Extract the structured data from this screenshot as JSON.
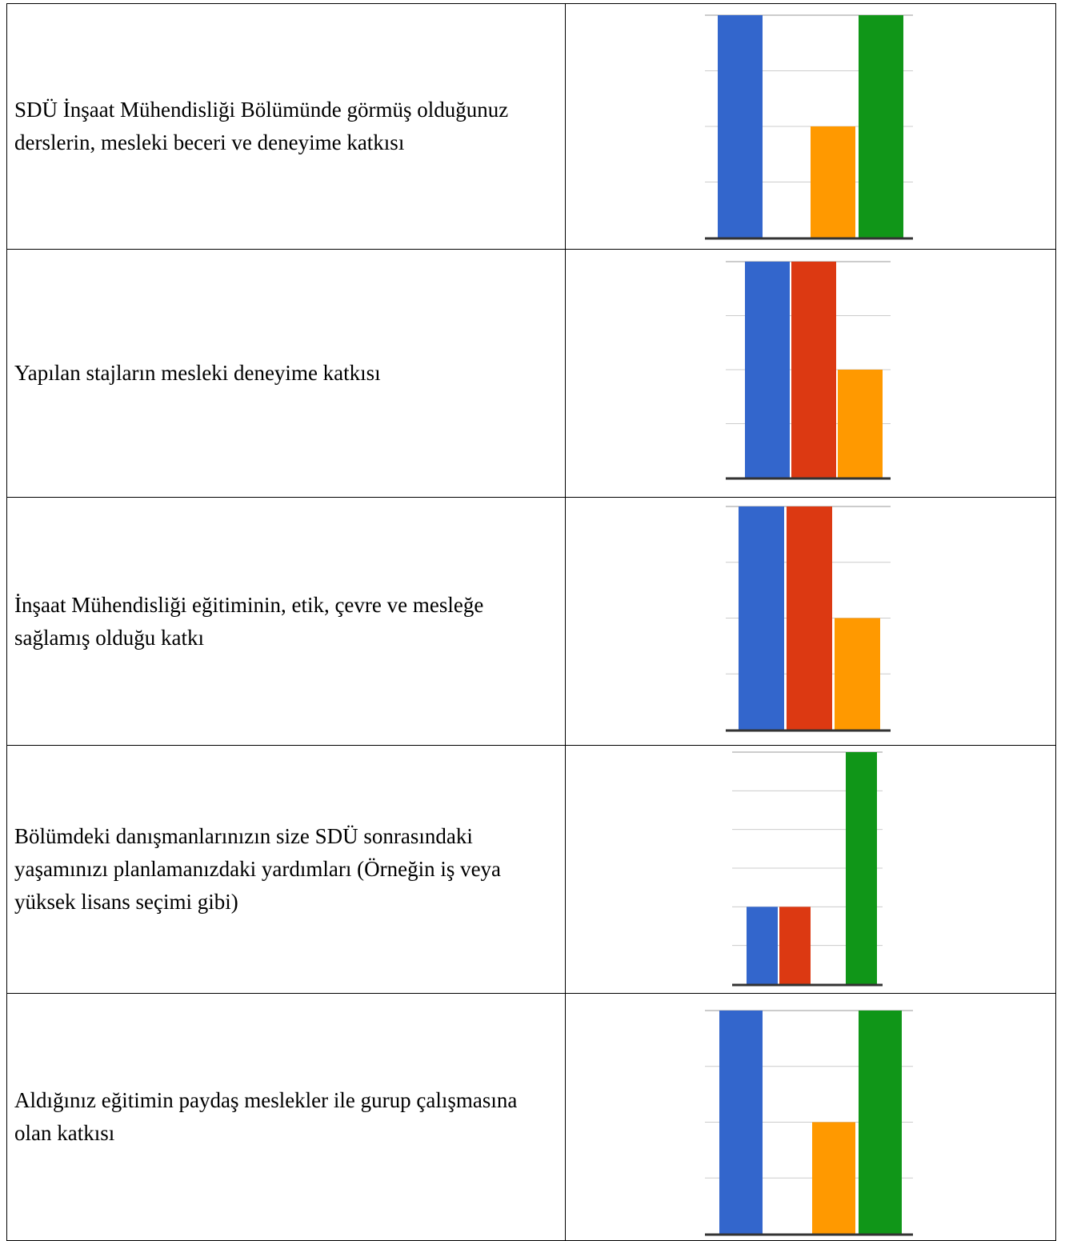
{
  "colors": {
    "blue": "#3366cc",
    "red": "#dc3912",
    "orange": "#ff9900",
    "green": "#109618",
    "grid": "#cccccc",
    "baseline": "#333333"
  },
  "rows": [
    {
      "label": "SDÜ İnşaat Mühendisliği Bölümünde görmüş olduğunuz derslerin, mesleki beceri ve deneyime katkısı"
    },
    {
      "label": "Yapılan stajların mesleki deneyime katkısı"
    },
    {
      "label": "İnşaat Mühendisliği eğitiminin, etik, çevre ve mesleğe sağlamış olduğu katkı"
    },
    {
      "label": "Bölümdeki danışmanlarınızın size SDÜ sonrasındaki yaşamınızı planlamanızdaki yardımları (Örneğin iş veya yüksek lisans seçimi gibi)"
    },
    {
      "label": "Aldığınız eğitimin paydaş meslekler ile gurup çalışmasına olan katkısı"
    }
  ],
  "chart_data": [
    {
      "type": "bar",
      "ylim": [
        0,
        1
      ],
      "grid": true,
      "series": [
        {
          "values": [
            1
          ],
          "color": "#3366cc"
        },
        {
          "values": [
            0
          ],
          "color": "#dc3912"
        },
        {
          "values": [
            0.5
          ],
          "color": "#ff9900"
        },
        {
          "values": [
            1
          ],
          "color": "#109618"
        }
      ]
    },
    {
      "type": "bar",
      "ylim": [
        0,
        1
      ],
      "grid": true,
      "series": [
        {
          "values": [
            1
          ],
          "color": "#3366cc"
        },
        {
          "values": [
            1
          ],
          "color": "#dc3912"
        },
        {
          "values": [
            0.5
          ],
          "color": "#ff9900"
        }
      ]
    },
    {
      "type": "bar",
      "ylim": [
        0,
        1
      ],
      "grid": true,
      "series": [
        {
          "values": [
            1
          ],
          "color": "#3366cc"
        },
        {
          "values": [
            1
          ],
          "color": "#dc3912"
        },
        {
          "values": [
            0.5
          ],
          "color": "#ff9900"
        }
      ]
    },
    {
      "type": "bar",
      "ylim": [
        0,
        3
      ],
      "grid": true,
      "series": [
        {
          "values": [
            1
          ],
          "color": "#3366cc"
        },
        {
          "values": [
            1
          ],
          "color": "#dc3912"
        },
        {
          "values": [
            0
          ],
          "color": "#ff9900"
        },
        {
          "values": [
            3
          ],
          "color": "#109618"
        }
      ]
    },
    {
      "type": "bar",
      "ylim": [
        0,
        1
      ],
      "grid": true,
      "series": [
        {
          "values": [
            1
          ],
          "color": "#3366cc"
        },
        {
          "values": [
            0
          ],
          "color": "#dc3912"
        },
        {
          "values": [
            0.5
          ],
          "color": "#ff9900"
        },
        {
          "values": [
            1
          ],
          "color": "#109618"
        }
      ]
    }
  ]
}
